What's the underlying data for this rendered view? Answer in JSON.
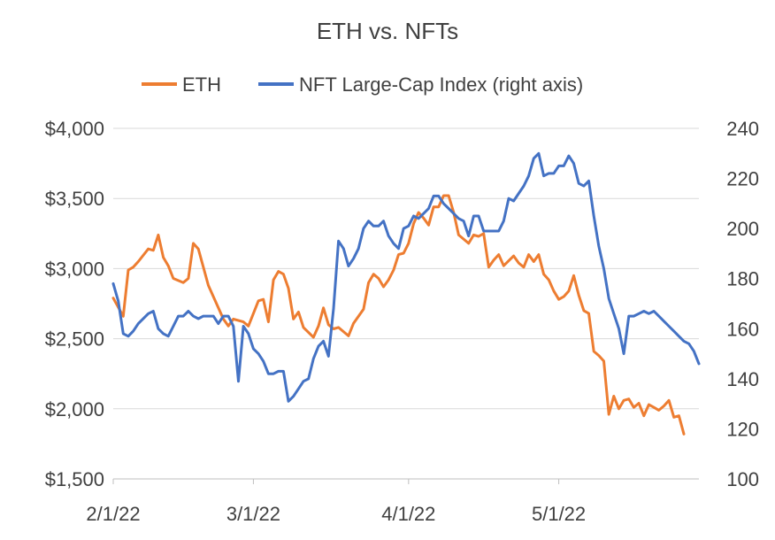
{
  "chart_data": {
    "type": "line",
    "title": "ETH vs. NFTs",
    "legend_position": "top",
    "grid": "horizontal",
    "x_start": "2022-02-01",
    "x_end": "2022-05-29",
    "x_ticks": [
      {
        "date": "2022-02-01",
        "label": "2/1/22"
      },
      {
        "date": "2022-03-01",
        "label": "3/1/22"
      },
      {
        "date": "2022-04-01",
        "label": "4/1/22"
      },
      {
        "date": "2022-05-01",
        "label": "5/1/22"
      }
    ],
    "y_left": {
      "range": [
        1500,
        4000
      ],
      "ticks": [
        1500,
        2000,
        2500,
        3000,
        3500,
        4000
      ],
      "tick_labels": [
        "$1,500",
        "$2,000",
        "$2,500",
        "$3,000",
        "$3,500",
        "$4,000"
      ]
    },
    "y_right": {
      "range": [
        100,
        240
      ],
      "ticks": [
        100,
        120,
        140,
        160,
        180,
        200,
        220,
        240
      ],
      "tick_labels": [
        "100",
        "120",
        "140",
        "160",
        "180",
        "200",
        "220",
        "240"
      ]
    },
    "series": [
      {
        "name": "ETH",
        "color": "#ED7D31",
        "axis": "left",
        "points": [
          [
            "2022-02-01",
            2790
          ],
          [
            "2022-02-03",
            2660
          ],
          [
            "2022-02-04",
            2990
          ],
          [
            "2022-02-05",
            3010
          ],
          [
            "2022-02-06",
            3050
          ],
          [
            "2022-02-08",
            3140
          ],
          [
            "2022-02-09",
            3130
          ],
          [
            "2022-02-10",
            3240
          ],
          [
            "2022-02-11",
            3080
          ],
          [
            "2022-02-12",
            3020
          ],
          [
            "2022-02-13",
            2930
          ],
          [
            "2022-02-15",
            2900
          ],
          [
            "2022-02-16",
            2930
          ],
          [
            "2022-02-17",
            3180
          ],
          [
            "2022-02-18",
            3140
          ],
          [
            "2022-02-20",
            2880
          ],
          [
            "2022-02-21",
            2800
          ],
          [
            "2022-02-23",
            2640
          ],
          [
            "2022-02-24",
            2590
          ],
          [
            "2022-02-25",
            2640
          ],
          [
            "2022-02-27",
            2620
          ],
          [
            "2022-02-28",
            2590
          ],
          [
            "2022-03-02",
            2770
          ],
          [
            "2022-03-03",
            2780
          ],
          [
            "2022-03-04",
            2620
          ],
          [
            "2022-03-05",
            2920
          ],
          [
            "2022-03-06",
            2980
          ],
          [
            "2022-03-07",
            2960
          ],
          [
            "2022-03-08",
            2860
          ],
          [
            "2022-03-09",
            2640
          ],
          [
            "2022-03-10",
            2690
          ],
          [
            "2022-03-11",
            2580
          ],
          [
            "2022-03-13",
            2510
          ],
          [
            "2022-03-14",
            2590
          ],
          [
            "2022-03-15",
            2720
          ],
          [
            "2022-03-16",
            2600
          ],
          [
            "2022-03-17",
            2570
          ],
          [
            "2022-03-18",
            2580
          ],
          [
            "2022-03-20",
            2520
          ],
          [
            "2022-03-21",
            2610
          ],
          [
            "2022-03-23",
            2710
          ],
          [
            "2022-03-24",
            2900
          ],
          [
            "2022-03-25",
            2960
          ],
          [
            "2022-03-26",
            2930
          ],
          [
            "2022-03-27",
            2870
          ],
          [
            "2022-03-28",
            2920
          ],
          [
            "2022-03-29",
            2990
          ],
          [
            "2022-03-30",
            3100
          ],
          [
            "2022-03-31",
            3110
          ],
          [
            "2022-04-01",
            3180
          ],
          [
            "2022-04-02",
            3320
          ],
          [
            "2022-04-03",
            3400
          ],
          [
            "2022-04-04",
            3360
          ],
          [
            "2022-04-05",
            3310
          ],
          [
            "2022-04-06",
            3440
          ],
          [
            "2022-04-07",
            3440
          ],
          [
            "2022-04-08",
            3520
          ],
          [
            "2022-04-09",
            3520
          ],
          [
            "2022-04-10",
            3400
          ],
          [
            "2022-04-11",
            3240
          ],
          [
            "2022-04-12",
            3210
          ],
          [
            "2022-04-13",
            3180
          ],
          [
            "2022-04-14",
            3240
          ],
          [
            "2022-04-15",
            3230
          ],
          [
            "2022-04-16",
            3250
          ],
          [
            "2022-04-17",
            3010
          ],
          [
            "2022-04-18",
            3060
          ],
          [
            "2022-04-19",
            3100
          ],
          [
            "2022-04-20",
            3020
          ],
          [
            "2022-04-22",
            3090
          ],
          [
            "2022-04-23",
            3040
          ],
          [
            "2022-04-24",
            3010
          ],
          [
            "2022-04-25",
            3100
          ],
          [
            "2022-04-26",
            3050
          ],
          [
            "2022-04-27",
            3100
          ],
          [
            "2022-04-28",
            2960
          ],
          [
            "2022-04-29",
            2920
          ],
          [
            "2022-04-30",
            2840
          ],
          [
            "2022-05-01",
            2780
          ],
          [
            "2022-05-02",
            2800
          ],
          [
            "2022-05-03",
            2840
          ],
          [
            "2022-05-04",
            2950
          ],
          [
            "2022-05-05",
            2810
          ],
          [
            "2022-05-06",
            2700
          ],
          [
            "2022-05-07",
            2680
          ],
          [
            "2022-05-08",
            2410
          ],
          [
            "2022-05-09",
            2380
          ],
          [
            "2022-05-10",
            2340
          ],
          [
            "2022-05-11",
            1960
          ],
          [
            "2022-05-12",
            2090
          ],
          [
            "2022-05-13",
            2000
          ],
          [
            "2022-05-14",
            2060
          ],
          [
            "2022-05-15",
            2070
          ],
          [
            "2022-05-16",
            2010
          ],
          [
            "2022-05-17",
            2040
          ],
          [
            "2022-05-18",
            1950
          ],
          [
            "2022-05-19",
            2030
          ],
          [
            "2022-05-20",
            2010
          ],
          [
            "2022-05-21",
            1990
          ],
          [
            "2022-05-22",
            2020
          ],
          [
            "2022-05-23",
            2060
          ],
          [
            "2022-05-24",
            1940
          ],
          [
            "2022-05-25",
            1950
          ],
          [
            "2022-05-26",
            1820
          ]
        ]
      },
      {
        "name": "NFT Large-Cap Index (right axis)",
        "color": "#4472C4",
        "axis": "right",
        "points": [
          [
            "2022-02-01",
            178
          ],
          [
            "2022-02-02",
            171
          ],
          [
            "2022-02-03",
            158
          ],
          [
            "2022-02-04",
            157
          ],
          [
            "2022-02-05",
            159
          ],
          [
            "2022-02-06",
            162
          ],
          [
            "2022-02-08",
            166
          ],
          [
            "2022-02-09",
            167
          ],
          [
            "2022-02-10",
            160
          ],
          [
            "2022-02-11",
            158
          ],
          [
            "2022-02-12",
            157
          ],
          [
            "2022-02-13",
            161
          ],
          [
            "2022-02-14",
            165
          ],
          [
            "2022-02-15",
            165
          ],
          [
            "2022-02-16",
            167
          ],
          [
            "2022-02-17",
            165
          ],
          [
            "2022-02-18",
            164
          ],
          [
            "2022-02-19",
            165
          ],
          [
            "2022-02-20",
            165
          ],
          [
            "2022-02-21",
            165
          ],
          [
            "2022-02-22",
            162
          ],
          [
            "2022-02-23",
            165
          ],
          [
            "2022-02-24",
            165
          ],
          [
            "2022-02-25",
            161
          ],
          [
            "2022-02-26",
            139
          ],
          [
            "2022-02-27",
            161
          ],
          [
            "2022-02-28",
            158
          ],
          [
            "2022-03-01",
            152
          ],
          [
            "2022-03-02",
            150
          ],
          [
            "2022-03-03",
            147
          ],
          [
            "2022-03-04",
            142
          ],
          [
            "2022-03-05",
            142
          ],
          [
            "2022-03-06",
            143
          ],
          [
            "2022-03-07",
            143
          ],
          [
            "2022-03-08",
            131
          ],
          [
            "2022-03-09",
            133
          ],
          [
            "2022-03-10",
            136
          ],
          [
            "2022-03-11",
            139
          ],
          [
            "2022-03-12",
            140
          ],
          [
            "2022-03-13",
            148
          ],
          [
            "2022-03-14",
            153
          ],
          [
            "2022-03-15",
            155
          ],
          [
            "2022-03-16",
            149
          ],
          [
            "2022-03-17",
            168
          ],
          [
            "2022-03-18",
            195
          ],
          [
            "2022-03-19",
            192
          ],
          [
            "2022-03-20",
            185
          ],
          [
            "2022-03-21",
            188
          ],
          [
            "2022-03-22",
            192
          ],
          [
            "2022-03-23",
            200
          ],
          [
            "2022-03-24",
            203
          ],
          [
            "2022-03-25",
            201
          ],
          [
            "2022-03-26",
            201
          ],
          [
            "2022-03-27",
            203
          ],
          [
            "2022-03-28",
            197
          ],
          [
            "2022-03-29",
            194
          ],
          [
            "2022-03-30",
            192
          ],
          [
            "2022-03-31",
            200
          ],
          [
            "2022-04-01",
            201
          ],
          [
            "2022-04-02",
            205
          ],
          [
            "2022-04-03",
            204
          ],
          [
            "2022-04-04",
            206
          ],
          [
            "2022-04-05",
            208
          ],
          [
            "2022-04-06",
            213
          ],
          [
            "2022-04-07",
            213
          ],
          [
            "2022-04-08",
            210
          ],
          [
            "2022-04-09",
            208
          ],
          [
            "2022-04-10",
            206
          ],
          [
            "2022-04-11",
            204
          ],
          [
            "2022-04-12",
            203
          ],
          [
            "2022-04-13",
            197
          ],
          [
            "2022-04-14",
            205
          ],
          [
            "2022-04-15",
            205
          ],
          [
            "2022-04-16",
            199
          ],
          [
            "2022-04-17",
            199
          ],
          [
            "2022-04-18",
            199
          ],
          [
            "2022-04-19",
            199
          ],
          [
            "2022-04-20",
            203
          ],
          [
            "2022-04-21",
            212
          ],
          [
            "2022-04-22",
            211
          ],
          [
            "2022-04-23",
            214
          ],
          [
            "2022-04-24",
            217
          ],
          [
            "2022-04-25",
            221
          ],
          [
            "2022-04-26",
            228
          ],
          [
            "2022-04-27",
            230
          ],
          [
            "2022-04-28",
            221
          ],
          [
            "2022-04-29",
            222
          ],
          [
            "2022-04-30",
            222
          ],
          [
            "2022-05-01",
            225
          ],
          [
            "2022-05-02",
            225
          ],
          [
            "2022-05-03",
            229
          ],
          [
            "2022-05-04",
            226
          ],
          [
            "2022-05-05",
            218
          ],
          [
            "2022-05-06",
            217
          ],
          [
            "2022-05-07",
            219
          ],
          [
            "2022-05-08",
            205
          ],
          [
            "2022-05-09",
            193
          ],
          [
            "2022-05-10",
            184
          ],
          [
            "2022-05-11",
            172
          ],
          [
            "2022-05-12",
            166
          ],
          [
            "2022-05-13",
            160
          ],
          [
            "2022-05-14",
            150
          ],
          [
            "2022-05-15",
            165
          ],
          [
            "2022-05-16",
            165
          ],
          [
            "2022-05-17",
            166
          ],
          [
            "2022-05-18",
            167
          ],
          [
            "2022-05-19",
            166
          ],
          [
            "2022-05-20",
            167
          ],
          [
            "2022-05-21",
            165
          ],
          [
            "2022-05-22",
            163
          ],
          [
            "2022-05-23",
            161
          ],
          [
            "2022-05-24",
            159
          ],
          [
            "2022-05-25",
            157
          ],
          [
            "2022-05-26",
            155
          ],
          [
            "2022-05-27",
            154
          ],
          [
            "2022-05-28",
            151
          ],
          [
            "2022-05-29",
            146
          ]
        ]
      }
    ]
  }
}
